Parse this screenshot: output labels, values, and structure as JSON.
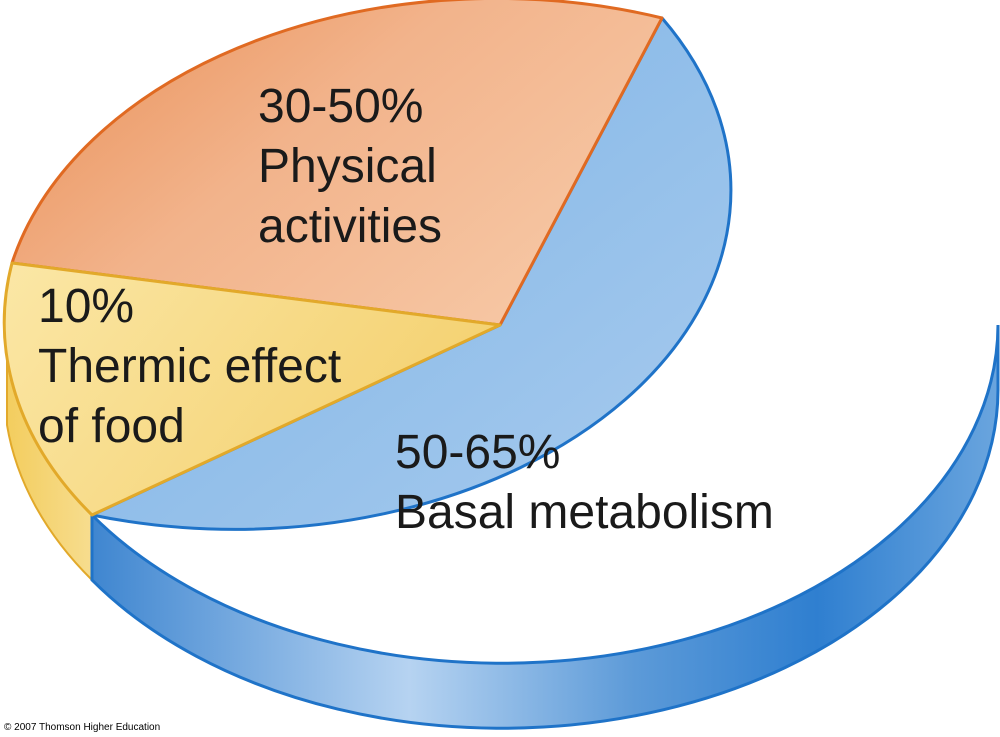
{
  "chart_data": {
    "type": "pie",
    "style": "3d",
    "slices": [
      {
        "key": "basal",
        "label": "Basal metabolism",
        "value_text": "50-65%",
        "value": 60,
        "color": "#7fb3e6"
      },
      {
        "key": "physical",
        "label": "Physical activities",
        "value_text": "30-50%",
        "value": 30,
        "color": "#ee9f6e"
      },
      {
        "key": "thermic",
        "label": "Thermic effect of food",
        "value_text": "10%",
        "value": 10,
        "color": "#f7d77a"
      }
    ],
    "label_lines": {
      "basal": [
        "50-65%",
        "Basal metabolism"
      ],
      "physical": [
        "30-50%",
        "Physical",
        "activities"
      ],
      "thermic": [
        "10%",
        "Thermic effect",
        "of food"
      ]
    }
  },
  "footer": {
    "copyright": "© 2007 Thomson Higher Education"
  }
}
